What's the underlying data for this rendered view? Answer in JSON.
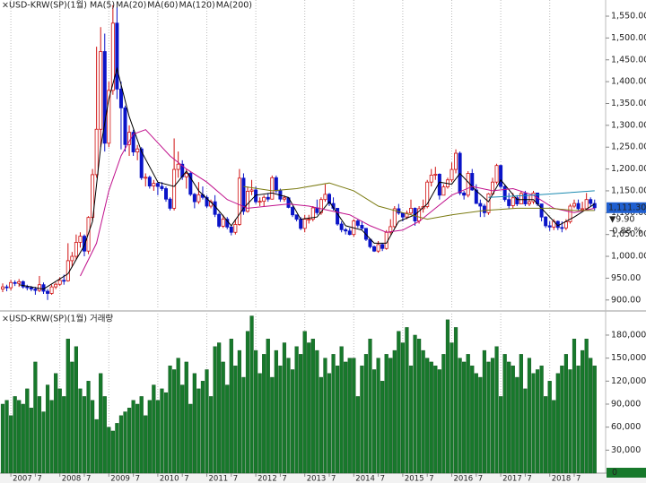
{
  "chart_data": [
    {
      "type": "candlestick",
      "title": "USD-KRW(SP)(1월)",
      "ylim": [
        879,
        1587
      ],
      "yticks": [
        {
          "value": 1550,
          "label": "1,550.00"
        },
        {
          "value": 1500,
          "label": "1,500.00"
        },
        {
          "value": 1450,
          "label": "1,450.00"
        },
        {
          "value": 1400,
          "label": "1,400.00"
        },
        {
          "value": 1350,
          "label": "1,350.00"
        },
        {
          "value": 1300,
          "label": "1,300.00"
        },
        {
          "value": 1250,
          "label": "1,250.00"
        },
        {
          "value": 1200,
          "label": "1,200.00"
        },
        {
          "value": 1150,
          "label": "1,150.00"
        },
        {
          "value": 1100,
          "label": "1,100.00"
        },
        {
          "value": 1050,
          "label": "1,050.00"
        },
        {
          "value": 1000,
          "label": "1,000.00"
        },
        {
          "value": 950,
          "label": "950.00"
        },
        {
          "value": 900,
          "label": "900.00"
        }
      ],
      "up_color": "#d01010",
      "down_color": "#0a14c8",
      "open": [
        925,
        930,
        928,
        940,
        938,
        942,
        930,
        928,
        925,
        922,
        935,
        920,
        915,
        930,
        936,
        945,
        944,
        990,
        1000,
        1032,
        1046,
        1012,
        1089,
        1187,
        1291,
        1469,
        1259,
        1380,
        1534,
        1383,
        1340,
        1256,
        1284,
        1239,
        1246,
        1180,
        1181,
        1161,
        1167,
        1160,
        1155,
        1131,
        1110,
        1199,
        1211,
        1182,
        1190,
        1142,
        1125,
        1141,
        1135,
        1115,
        1125,
        1096,
        1069,
        1085,
        1067,
        1055,
        1073,
        1179,
        1103,
        1149,
        1152,
        1125,
        1126,
        1135,
        1131,
        1180,
        1150,
        1131,
        1134,
        1112,
        1095,
        1085,
        1064,
        1085,
        1085,
        1111,
        1100,
        1130,
        1142,
        1121,
        1110,
        1074,
        1061,
        1058,
        1050,
        1081,
        1071,
        1064,
        1039,
        1022,
        1012,
        1027,
        1018,
        1055,
        1068,
        1109,
        1099,
        1090,
        1099,
        1110,
        1081,
        1109,
        1114,
        1170,
        1186,
        1188,
        1140,
        1159,
        1175,
        1199,
        1236,
        1145,
        1140,
        1190,
        1152,
        1121,
        1115,
        1100,
        1143,
        1170,
        1208,
        1160,
        1130,
        1116,
        1134,
        1120,
        1144,
        1120,
        1125,
        1145,
        1120,
        1090,
        1070,
        1067,
        1080,
        1066,
        1065,
        1079,
        1115,
        1121,
        1109,
        1109,
        1130,
        1121
      ],
      "high": [
        938,
        935,
        946,
        945,
        948,
        945,
        935,
        932,
        930,
        955,
        940,
        925,
        935,
        940,
        952,
        958,
        1030,
        1010,
        1050,
        1055,
        1050,
        1092,
        1200,
        1480,
        1525,
        1510,
        1400,
        1575,
        1570,
        1400,
        1345,
        1300,
        1290,
        1255,
        1250,
        1190,
        1185,
        1175,
        1170,
        1170,
        1160,
        1135,
        1270,
        1240,
        1220,
        1200,
        1195,
        1145,
        1170,
        1160,
        1140,
        1130,
        1140,
        1100,
        1095,
        1090,
        1070,
        1085,
        1200,
        1190,
        1160,
        1175,
        1160,
        1135,
        1140,
        1145,
        1185,
        1185,
        1155,
        1140,
        1135,
        1115,
        1095,
        1090,
        1095,
        1095,
        1115,
        1130,
        1135,
        1165,
        1145,
        1135,
        1110,
        1080,
        1065,
        1065,
        1085,
        1085,
        1080,
        1065,
        1040,
        1025,
        1035,
        1030,
        1060,
        1085,
        1115,
        1120,
        1100,
        1105,
        1130,
        1112,
        1115,
        1130,
        1175,
        1200,
        1205,
        1190,
        1165,
        1180,
        1215,
        1245,
        1240,
        1150,
        1195,
        1200,
        1165,
        1130,
        1120,
        1145,
        1180,
        1212,
        1210,
        1165,
        1145,
        1145,
        1140,
        1150,
        1150,
        1140,
        1150,
        1145,
        1120,
        1092,
        1080,
        1085,
        1082,
        1080,
        1085,
        1120,
        1130,
        1130,
        1125,
        1145,
        1135,
        1130
      ],
      "low": [
        918,
        920,
        922,
        932,
        930,
        926,
        922,
        920,
        912,
        918,
        914,
        900,
        912,
        925,
        932,
        935,
        942,
        975,
        992,
        1020,
        1000,
        1005,
        1080,
        1180,
        1250,
        1240,
        1250,
        1370,
        1360,
        1245,
        1240,
        1230,
        1230,
        1220,
        1175,
        1160,
        1155,
        1150,
        1140,
        1150,
        1125,
        1105,
        1105,
        1180,
        1175,
        1155,
        1138,
        1110,
        1120,
        1130,
        1110,
        1110,
        1090,
        1065,
        1065,
        1062,
        1048,
        1050,
        1070,
        1095,
        1100,
        1140,
        1120,
        1115,
        1115,
        1125,
        1130,
        1145,
        1125,
        1125,
        1110,
        1090,
        1080,
        1060,
        1055,
        1075,
        1080,
        1095,
        1095,
        1125,
        1115,
        1105,
        1070,
        1055,
        1050,
        1048,
        1045,
        1065,
        1060,
        1035,
        1018,
        1010,
        1008,
        1012,
        1015,
        1050,
        1065,
        1095,
        1080,
        1085,
        1095,
        1070,
        1075,
        1100,
        1110,
        1160,
        1175,
        1130,
        1140,
        1155,
        1170,
        1190,
        1140,
        1130,
        1135,
        1150,
        1120,
        1090,
        1090,
        1095,
        1140,
        1165,
        1155,
        1125,
        1110,
        1110,
        1115,
        1120,
        1115,
        1115,
        1120,
        1115,
        1080,
        1065,
        1058,
        1060,
        1060,
        1055,
        1060,
        1075,
        1110,
        1105,
        1105,
        1105,
        1115,
        1105
      ],
      "close": [
        930,
        928,
        940,
        938,
        942,
        930,
        928,
        925,
        922,
        935,
        920,
        915,
        930,
        936,
        945,
        944,
        990,
        1000,
        1032,
        1046,
        1012,
        1089,
        1187,
        1291,
        1469,
        1259,
        1380,
        1534,
        1383,
        1340,
        1256,
        1284,
        1239,
        1246,
        1180,
        1181,
        1161,
        1167,
        1160,
        1155,
        1131,
        1110,
        1199,
        1211,
        1182,
        1190,
        1142,
        1125,
        1141,
        1135,
        1115,
        1125,
        1096,
        1069,
        1085,
        1067,
        1055,
        1073,
        1179,
        1103,
        1149,
        1152,
        1125,
        1126,
        1135,
        1131,
        1180,
        1150,
        1131,
        1134,
        1112,
        1095,
        1085,
        1064,
        1085,
        1085,
        1111,
        1100,
        1130,
        1142,
        1121,
        1110,
        1074,
        1061,
        1058,
        1050,
        1081,
        1071,
        1064,
        1039,
        1022,
        1012,
        1027,
        1018,
        1055,
        1068,
        1109,
        1099,
        1090,
        1099,
        1110,
        1081,
        1109,
        1114,
        1170,
        1186,
        1188,
        1140,
        1159,
        1175,
        1199,
        1236,
        1145,
        1140,
        1190,
        1152,
        1121,
        1115,
        1100,
        1143,
        1170,
        1208,
        1160,
        1130,
        1116,
        1134,
        1120,
        1144,
        1120,
        1125,
        1145,
        1120,
        1090,
        1070,
        1067,
        1080,
        1066,
        1065,
        1079,
        1115,
        1121,
        1109,
        1109,
        1130,
        1121,
        1111.3
      ],
      "series": [
        {
          "name": "MA(5)",
          "color": "#000000",
          "x": [
            4,
            10,
            16,
            20,
            22,
            24,
            26,
            28,
            31,
            34,
            38,
            42,
            45,
            48,
            52,
            56,
            59,
            62,
            66,
            70,
            73,
            77,
            80,
            84,
            88,
            91,
            94,
            97,
            101,
            104,
            107,
            110,
            112,
            116,
            119,
            122,
            126,
            130,
            133,
            136,
            140,
            145
          ],
          "values": [
            935,
            925,
            960,
            1025,
            1080,
            1250,
            1360,
            1430,
            1320,
            1240,
            1170,
            1160,
            1195,
            1150,
            1115,
            1070,
            1110,
            1140,
            1145,
            1135,
            1085,
            1090,
            1125,
            1070,
            1060,
            1030,
            1030,
            1080,
            1095,
            1120,
            1170,
            1165,
            1190,
            1150,
            1125,
            1175,
            1130,
            1130,
            1100,
            1070,
            1090,
            1120
          ]
        },
        {
          "name": "MA(20)",
          "color": "#c0108c",
          "x": [
            19,
            23,
            26,
            29,
            32,
            35,
            38,
            41,
            45,
            50,
            55,
            60,
            65,
            70,
            75,
            80,
            85,
            90,
            94,
            98,
            102,
            106,
            110,
            115,
            120,
            125,
            130,
            135,
            140,
            145
          ],
          "values": [
            955,
            1030,
            1150,
            1230,
            1280,
            1290,
            1260,
            1230,
            1200,
            1170,
            1130,
            1110,
            1115,
            1120,
            1115,
            1105,
            1095,
            1070,
            1055,
            1060,
            1080,
            1110,
            1140,
            1160,
            1150,
            1155,
            1140,
            1110,
            1100,
            1110
          ]
        },
        {
          "name": "MA(60)",
          "color": "#7a7a10",
          "x": [
            59,
            66,
            72,
            80,
            86,
            92,
            98,
            104,
            110,
            118,
            126,
            134,
            140,
            145
          ],
          "values": [
            1160,
            1150,
            1155,
            1168,
            1150,
            1115,
            1100,
            1085,
            1095,
            1105,
            1110,
            1110,
            1105,
            1105
          ]
        },
        {
          "name": "MA(120)",
          "color": "#1a8ab0",
          "x": [
            119,
            130,
            145
          ],
          "values": [
            1135,
            1140,
            1150
          ]
        },
        {
          "name": "MA(200)",
          "color": "#d09020",
          "x": [],
          "values": []
        }
      ],
      "last_price": {
        "value": 1111.3,
        "label": "1,111.30"
      },
      "change": "▼9.90",
      "change_pct": "-0.88 %"
    },
    {
      "type": "bar",
      "title": "USD-KRW(SP)(1월) 거래량",
      "color": "#17792b",
      "ylim": [
        0,
        208000
      ],
      "yticks": [
        {
          "value": 180000,
          "label": "180,000"
        },
        {
          "value": 150000,
          "label": "150,000"
        },
        {
          "value": 120000,
          "label": "120,000"
        },
        {
          "value": 90000,
          "label": "90,000"
        },
        {
          "value": 60000,
          "label": "60,000"
        },
        {
          "value": 30000,
          "label": "30,000"
        }
      ],
      "current_volume": 0,
      "values": [
        90000,
        95000,
        75000,
        100000,
        95000,
        90000,
        110000,
        85000,
        145000,
        100000,
        80000,
        115000,
        95000,
        130000,
        110000,
        100000,
        175000,
        145000,
        165000,
        110000,
        100000,
        120000,
        95000,
        70000,
        130000,
        100000,
        60000,
        55000,
        65000,
        75000,
        80000,
        85000,
        95000,
        90000,
        100000,
        75000,
        95000,
        115000,
        95000,
        110000,
        105000,
        140000,
        135000,
        150000,
        115000,
        145000,
        90000,
        130000,
        110000,
        120000,
        135000,
        100000,
        165000,
        170000,
        145000,
        115000,
        175000,
        140000,
        160000,
        125000,
        185000,
        205000,
        160000,
        130000,
        155000,
        175000,
        125000,
        160000,
        140000,
        170000,
        150000,
        135000,
        165000,
        155000,
        185000,
        170000,
        175000,
        160000,
        125000,
        150000,
        130000,
        155000,
        140000,
        165000,
        145000,
        150000,
        150000,
        100000,
        140000,
        155000,
        175000,
        135000,
        150000,
        120000,
        155000,
        150000,
        160000,
        185000,
        170000,
        190000,
        140000,
        180000,
        175000,
        160000,
        150000,
        145000,
        140000,
        135000,
        155000,
        200000,
        170000,
        190000,
        150000,
        145000,
        155000,
        140000,
        130000,
        125000,
        160000,
        145000,
        150000,
        165000,
        100000,
        155000,
        145000,
        140000,
        125000,
        155000,
        110000,
        150000,
        130000,
        135000,
        140000,
        100000,
        120000,
        95000,
        130000,
        140000,
        155000,
        135000,
        175000,
        140000,
        160000,
        175000,
        150000,
        140000
      ],
      "xticks": [
        {
          "value": 2,
          "label": "2007"
        },
        {
          "value": 8,
          "label": "7"
        },
        {
          "value": 14,
          "label": "2008"
        },
        {
          "value": 20,
          "label": "7"
        },
        {
          "value": 26,
          "label": "2009"
        },
        {
          "value": 32,
          "label": "7"
        },
        {
          "value": 38,
          "label": "2010"
        },
        {
          "value": 44,
          "label": "7"
        },
        {
          "value": 50,
          "label": "2011"
        },
        {
          "value": 56,
          "label": "7"
        },
        {
          "value": 62,
          "label": "2012"
        },
        {
          "value": 68,
          "label": "7"
        },
        {
          "value": 74,
          "label": "2013"
        },
        {
          "value": 80,
          "label": "7"
        },
        {
          "value": 86,
          "label": "2014"
        },
        {
          "value": 92,
          "label": "7"
        },
        {
          "value": 98,
          "label": "2015"
        },
        {
          "value": 104,
          "label": "7"
        },
        {
          "value": 110,
          "label": "2016"
        },
        {
          "value": 116,
          "label": "7"
        },
        {
          "value": 122,
          "label": "2017"
        },
        {
          "value": 128,
          "label": "7"
        },
        {
          "value": 134,
          "label": "2018"
        },
        {
          "value": 140,
          "label": "7"
        }
      ]
    }
  ]
}
